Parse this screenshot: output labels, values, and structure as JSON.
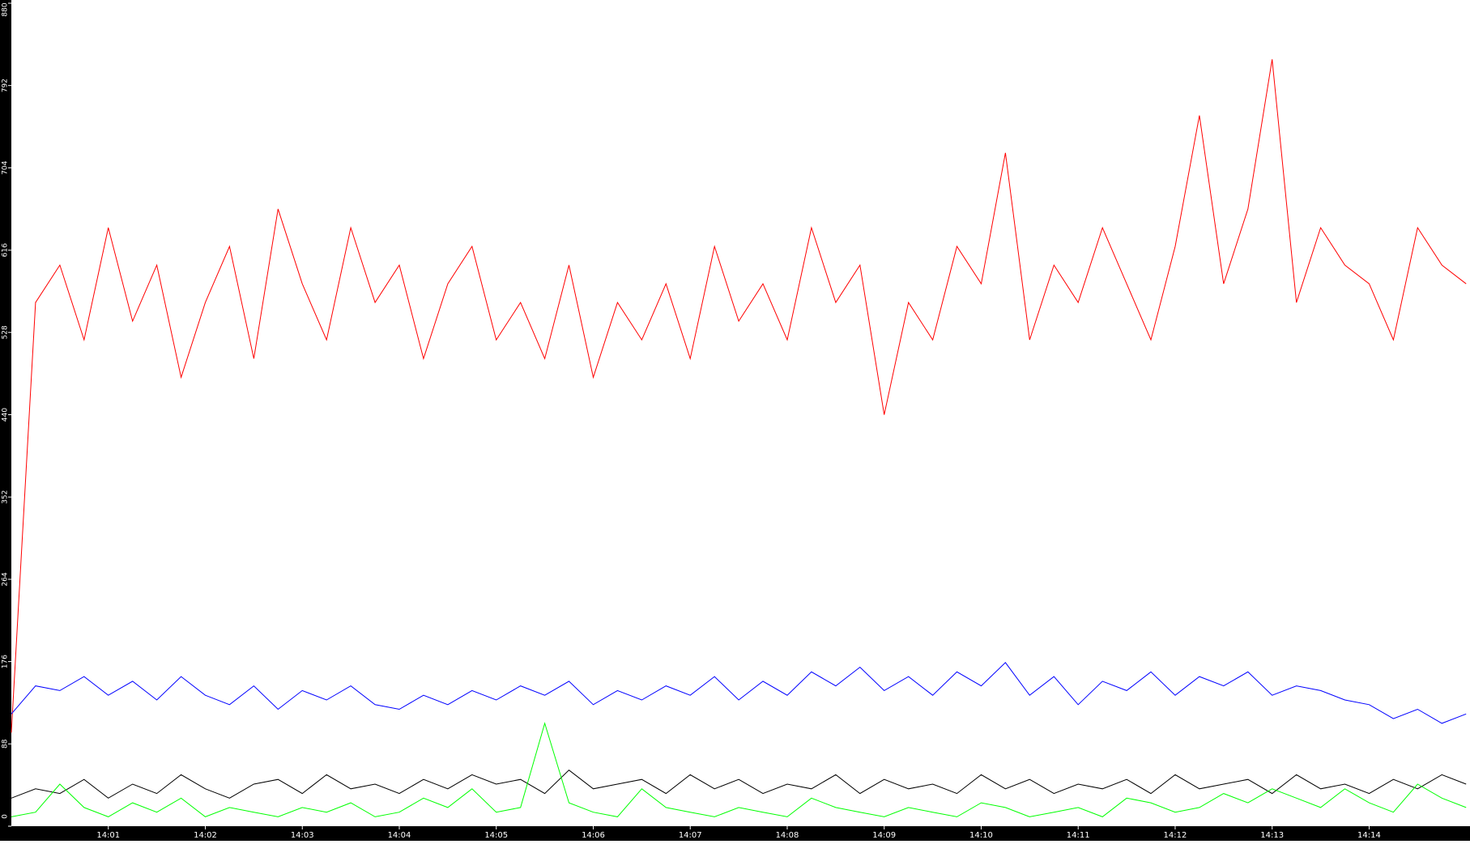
{
  "chart_data": {
    "type": "line",
    "x": [
      0,
      0.25,
      0.5,
      0.75,
      1,
      1.25,
      1.5,
      1.75,
      2,
      2.25,
      2.5,
      2.75,
      3,
      3.25,
      3.5,
      3.75,
      4,
      4.25,
      4.5,
      4.75,
      5,
      5.25,
      5.5,
      5.75,
      6,
      6.25,
      6.5,
      6.75,
      7,
      7.25,
      7.5,
      7.75,
      8,
      8.25,
      8.5,
      8.75,
      9,
      9.25,
      9.5,
      9.75,
      10,
      10.25,
      10.5,
      10.75,
      11,
      11.25,
      11.5,
      11.75,
      12,
      12.25,
      12.5,
      12.75,
      13,
      13.25,
      13.5,
      13.75,
      14,
      14.25,
      14.5,
      14.75,
      15
    ],
    "xlim": [
      0,
      15.04
    ],
    "xticks": [
      {
        "value": 1,
        "label": "14:01"
      },
      {
        "value": 2,
        "label": "14:02"
      },
      {
        "value": 3,
        "label": "14:03"
      },
      {
        "value": 4,
        "label": "14:04"
      },
      {
        "value": 5,
        "label": "14:05"
      },
      {
        "value": 6,
        "label": "14:06"
      },
      {
        "value": 7,
        "label": "14:07"
      },
      {
        "value": 8,
        "label": "14:08"
      },
      {
        "value": 9,
        "label": "14:09"
      },
      {
        "value": 10,
        "label": "14:10"
      },
      {
        "value": 11,
        "label": "14:11"
      },
      {
        "value": 12,
        "label": "14:12"
      },
      {
        "value": 13,
        "label": "14:13"
      },
      {
        "value": 14,
        "label": "14:14"
      }
    ],
    "ylim": [
      0,
      880
    ],
    "yticks": [
      0,
      88,
      176,
      264,
      352,
      440,
      528,
      616,
      704,
      792,
      880
    ],
    "series": [
      {
        "color": "#ff0000",
        "values": [
          100,
          560,
          600,
          520,
          640,
          540,
          600,
          480,
          560,
          620,
          500,
          660,
          580,
          520,
          640,
          560,
          600,
          500,
          580,
          620,
          520,
          560,
          500,
          600,
          480,
          560,
          520,
          580,
          500,
          620,
          540,
          580,
          520,
          640,
          560,
          600,
          440,
          560,
          520,
          620,
          580,
          720,
          520,
          600,
          560,
          640,
          580,
          520,
          620,
          760,
          580,
          660,
          820,
          560,
          640,
          600,
          580,
          520,
          640,
          600,
          580
        ]
      },
      {
        "color": "#0000ff",
        "values": [
          120,
          150,
          145,
          160,
          140,
          155,
          135,
          160,
          140,
          130,
          150,
          125,
          145,
          135,
          150,
          130,
          125,
          140,
          130,
          145,
          135,
          150,
          140,
          155,
          130,
          145,
          135,
          150,
          140,
          160,
          135,
          155,
          140,
          165,
          150,
          170,
          145,
          160,
          140,
          165,
          150,
          175,
          140,
          160,
          130,
          155,
          145,
          165,
          140,
          160,
          150,
          165,
          140,
          150,
          145,
          135,
          130,
          115,
          125,
          110,
          120
        ]
      },
      {
        "color": "#000000",
        "values": [
          30,
          40,
          35,
          50,
          30,
          45,
          35,
          55,
          40,
          30,
          45,
          50,
          35,
          55,
          40,
          45,
          35,
          50,
          40,
          55,
          45,
          50,
          35,
          60,
          40,
          45,
          50,
          35,
          55,
          40,
          50,
          35,
          45,
          40,
          55,
          35,
          50,
          40,
          45,
          35,
          55,
          40,
          50,
          35,
          45,
          40,
          50,
          35,
          55,
          40,
          45,
          50,
          35,
          55,
          40,
          45,
          35,
          50,
          40,
          55,
          45
        ]
      },
      {
        "color": "#00ff00",
        "values": [
          10,
          15,
          45,
          20,
          10,
          25,
          15,
          30,
          10,
          20,
          15,
          10,
          20,
          15,
          25,
          10,
          15,
          30,
          20,
          40,
          15,
          20,
          110,
          25,
          15,
          10,
          40,
          20,
          15,
          10,
          20,
          15,
          10,
          30,
          20,
          15,
          10,
          20,
          15,
          10,
          25,
          20,
          10,
          15,
          20,
          10,
          30,
          25,
          15,
          20,
          35,
          25,
          40,
          30,
          20,
          40,
          25,
          15,
          45,
          30,
          20
        ]
      }
    ]
  }
}
